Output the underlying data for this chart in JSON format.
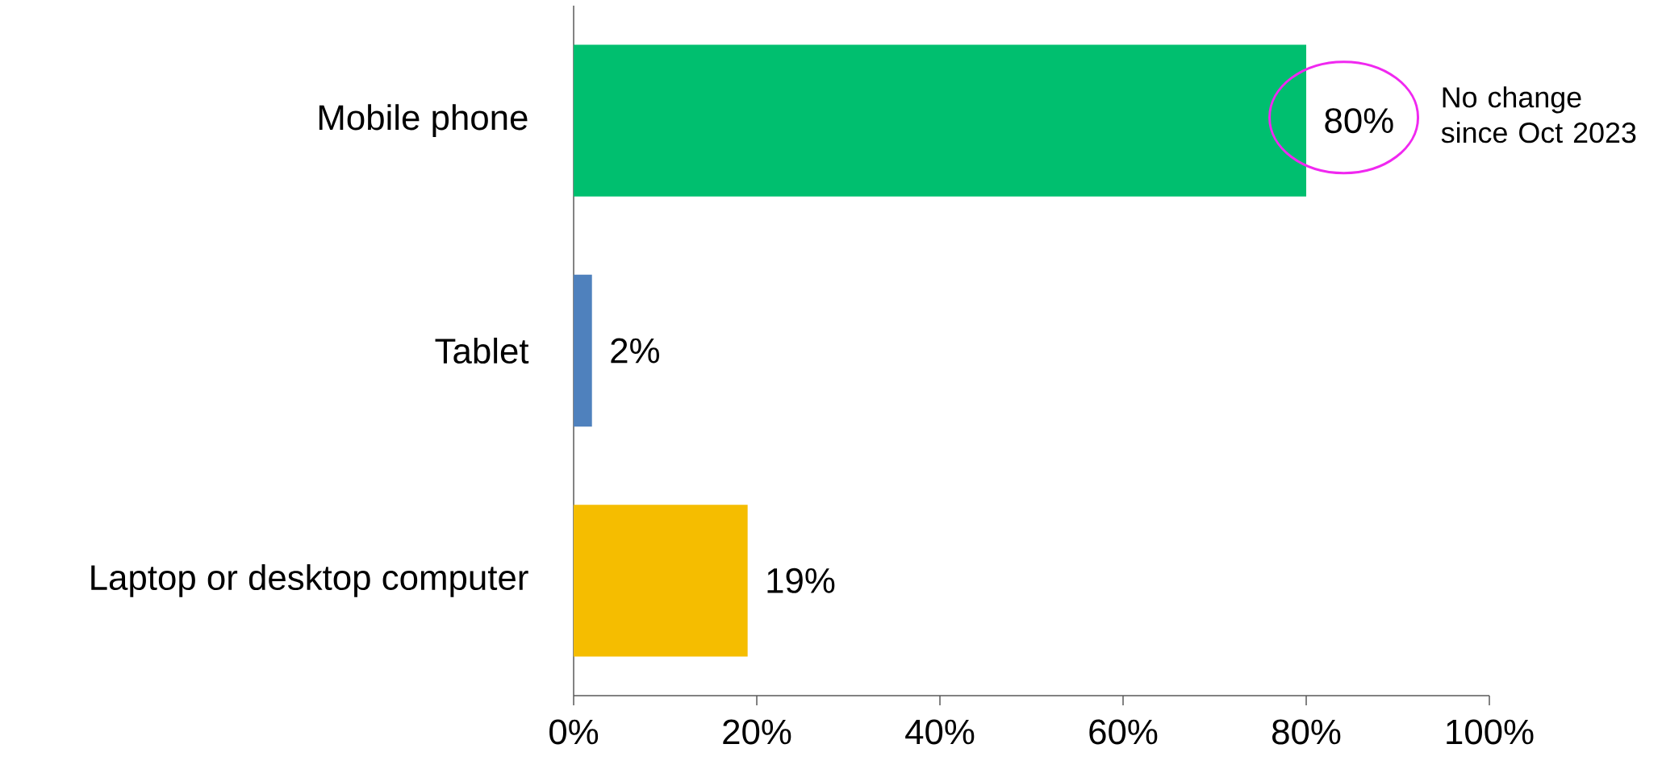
{
  "chart_data": {
    "type": "bar",
    "orientation": "horizontal",
    "categories": [
      "Mobile phone",
      "Tablet",
      "Laptop or desktop computer"
    ],
    "values": [
      80,
      2,
      19
    ],
    "colors": [
      "#00bf6f",
      "#4f81bd",
      "#f5bd00"
    ],
    "value_labels": [
      "80%",
      "2%",
      "19%"
    ],
    "xlim": [
      0,
      100
    ],
    "xticks": [
      {
        "value": 0,
        "label": "0%"
      },
      {
        "value": 20,
        "label": "20%"
      },
      {
        "value": 40,
        "label": "40%"
      },
      {
        "value": 60,
        "label": "60%"
      },
      {
        "value": 80,
        "label": "80%"
      },
      {
        "value": 100,
        "label": "100%"
      }
    ],
    "annotations": [
      "No change since Oct 2023"
    ],
    "grid": false
  }
}
